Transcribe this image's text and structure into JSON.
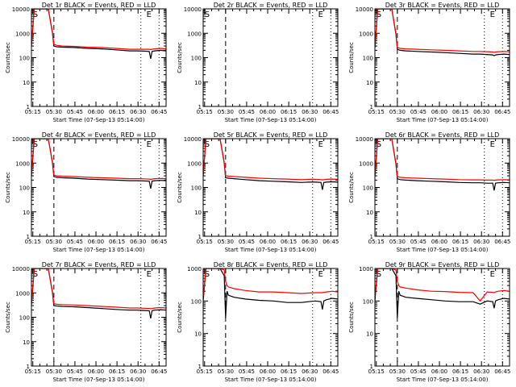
{
  "figure": {
    "shared_xlabel": "Start Time (07-Sep-13 05:14:00)",
    "shared_ylabel": "Counts/sec",
    "xticks": [
      "05:15",
      "05:30",
      "05:45",
      "06:00",
      "06:15",
      "06:30",
      "06:45"
    ],
    "yticks": [
      "1",
      "10",
      "100",
      "1000",
      "10000"
    ],
    "markers": [
      "S",
      "E"
    ],
    "colors": {
      "events": "#000000",
      "lld": "#ff0000",
      "axes": "#000000"
    }
  },
  "chart_data": [
    {
      "type": "line",
      "title": "Det 1r BLACK = Events, RED = LLD",
      "xlabel": "Start Time (07-Sep-13 05:14:00)",
      "ylabel": "Counts/sec",
      "xlim": [
        0,
        96
      ],
      "ylim": [
        1,
        10000
      ],
      "yscale": "log",
      "x": [
        0,
        2,
        4,
        8,
        12,
        15,
        16,
        18,
        22,
        30,
        40,
        50,
        60,
        70,
        75,
        80,
        84,
        85,
        86,
        88,
        92,
        96
      ],
      "series": [
        {
          "name": "Events",
          "values": [
            300,
            10000,
            10000,
            10000,
            10000,
            1000,
            300,
            280,
            270,
            260,
            240,
            230,
            210,
            190,
            190,
            185,
            180,
            90,
            180,
            190,
            200,
            190
          ]
        },
        {
          "name": "LLD",
          "values": [
            320,
            10000,
            10000,
            10000,
            10000,
            1100,
            350,
            320,
            300,
            290,
            270,
            260,
            240,
            220,
            220,
            220,
            220,
            215,
            220,
            230,
            240,
            230
          ]
        }
      ],
      "vlines": [
        {
          "x": 16,
          "style": "dashed"
        },
        {
          "x": 78,
          "style": "dotted"
        },
        {
          "x": 91,
          "style": "dotted"
        }
      ],
      "markers": [
        {
          "label": "S",
          "x": 1
        },
        {
          "label": "E",
          "x": 82
        }
      ]
    },
    {
      "type": "line",
      "title": "Det 2r BLACK = Events, RED = LLD",
      "xlabel": "Start Time (07-Sep-13 05:14:00)",
      "ylabel": "Counts/sec",
      "xlim": [
        0,
        96
      ],
      "ylim": [
        1,
        10000
      ],
      "yscale": "log",
      "x": [
        0,
        1,
        2
      ],
      "series": [
        {
          "name": "Events",
          "values": [
            1,
            1,
            1
          ]
        },
        {
          "name": "LLD",
          "values": [
            1,
            1,
            1
          ]
        }
      ],
      "vlines": [
        {
          "x": 16,
          "style": "dashed"
        },
        {
          "x": 78,
          "style": "dotted"
        },
        {
          "x": 91,
          "style": "dotted"
        }
      ],
      "markers": [
        {
          "label": "S",
          "x": 1
        },
        {
          "label": "E",
          "x": 82
        }
      ]
    },
    {
      "type": "line",
      "title": "Det 3r BLACK = Events, RED = LLD",
      "xlabel": "Start Time (07-Sep-13 05:14:00)",
      "ylabel": "Counts/sec",
      "xlim": [
        0,
        96
      ],
      "ylim": [
        1,
        10000
      ],
      "yscale": "log",
      "x": [
        0,
        2,
        4,
        8,
        12,
        15,
        16,
        18,
        22,
        30,
        40,
        50,
        60,
        70,
        75,
        80,
        84,
        85,
        86,
        88,
        92,
        96
      ],
      "series": [
        {
          "name": "Events",
          "values": [
            250,
            10000,
            10000,
            10000,
            10000,
            900,
            220,
            200,
            190,
            180,
            170,
            160,
            150,
            140,
            140,
            135,
            130,
            120,
            130,
            135,
            140,
            135
          ]
        },
        {
          "name": "LLD",
          "values": [
            270,
            10000,
            10000,
            10000,
            10000,
            1000,
            260,
            240,
            230,
            220,
            210,
            200,
            190,
            180,
            180,
            175,
            170,
            165,
            170,
            175,
            180,
            175
          ]
        }
      ],
      "vlines": [
        {
          "x": 16,
          "style": "dashed"
        },
        {
          "x": 78,
          "style": "dotted"
        },
        {
          "x": 91,
          "style": "dotted"
        }
      ],
      "markers": [
        {
          "label": "S",
          "x": 1
        },
        {
          "label": "E",
          "x": 82
        }
      ]
    },
    {
      "type": "line",
      "title": "Det 4r BLACK = Events, RED = LLD",
      "xlabel": "Start Time (07-Sep-13 05:14:00)",
      "ylabel": "Counts/sec",
      "xlim": [
        0,
        96
      ],
      "ylim": [
        1,
        10000
      ],
      "yscale": "log",
      "x": [
        0,
        2,
        4,
        8,
        12,
        15,
        16,
        18,
        22,
        30,
        40,
        50,
        60,
        70,
        75,
        80,
        84,
        85,
        86,
        88,
        92,
        96
      ],
      "series": [
        {
          "name": "Events",
          "values": [
            300,
            10000,
            10000,
            10000,
            10000,
            1000,
            280,
            260,
            250,
            240,
            220,
            210,
            200,
            190,
            190,
            185,
            180,
            90,
            180,
            190,
            195,
            190
          ]
        },
        {
          "name": "LLD",
          "values": [
            320,
            10000,
            10000,
            10000,
            10000,
            1100,
            320,
            300,
            290,
            280,
            260,
            250,
            240,
            230,
            230,
            225,
            220,
            215,
            220,
            230,
            235,
            230
          ]
        }
      ],
      "vlines": [
        {
          "x": 16,
          "style": "dashed"
        },
        {
          "x": 78,
          "style": "dotted"
        },
        {
          "x": 91,
          "style": "dotted"
        }
      ],
      "markers": [
        {
          "label": "S",
          "x": 1
        },
        {
          "label": "E",
          "x": 82
        }
      ]
    },
    {
      "type": "line",
      "title": "Det 5r BLACK = Events, RED = LLD",
      "xlabel": "Start Time (07-Sep-13 05:14:00)",
      "ylabel": "Counts/sec",
      "xlim": [
        0,
        96
      ],
      "ylim": [
        1,
        10000
      ],
      "yscale": "log",
      "x": [
        0,
        2,
        4,
        8,
        12,
        15,
        16,
        18,
        22,
        30,
        40,
        50,
        60,
        70,
        75,
        80,
        84,
        85,
        86,
        88,
        92,
        96
      ],
      "series": [
        {
          "name": "Events",
          "values": [
            300,
            10000,
            10000,
            10000,
            10000,
            1000,
            250,
            240,
            230,
            210,
            190,
            180,
            170,
            160,
            165,
            165,
            160,
            80,
            160,
            165,
            170,
            165
          ]
        },
        {
          "name": "LLD",
          "values": [
            320,
            10000,
            10000,
            10000,
            10000,
            1100,
            300,
            290,
            280,
            260,
            240,
            230,
            220,
            210,
            215,
            215,
            210,
            205,
            210,
            215,
            220,
            215
          ]
        }
      ],
      "vlines": [
        {
          "x": 16,
          "style": "dashed"
        },
        {
          "x": 78,
          "style": "dotted"
        },
        {
          "x": 91,
          "style": "dotted"
        }
      ],
      "markers": [
        {
          "label": "S",
          "x": 1
        },
        {
          "label": "E",
          "x": 82
        }
      ]
    },
    {
      "type": "line",
      "title": "Det 6r BLACK = Events, RED = LLD",
      "xlabel": "Start Time (07-Sep-13 05:14:00)",
      "ylabel": "Counts/sec",
      "xlim": [
        0,
        96
      ],
      "ylim": [
        1,
        10000
      ],
      "yscale": "log",
      "x": [
        0,
        2,
        4,
        8,
        12,
        15,
        16,
        18,
        22,
        30,
        40,
        50,
        60,
        70,
        75,
        80,
        84,
        85,
        86,
        88,
        92,
        96
      ],
      "series": [
        {
          "name": "Events",
          "values": [
            280,
            10000,
            10000,
            10000,
            10000,
            900,
            230,
            210,
            200,
            190,
            180,
            170,
            160,
            155,
            155,
            150,
            150,
            75,
            150,
            155,
            160,
            155
          ]
        },
        {
          "name": "LLD",
          "values": [
            300,
            10000,
            10000,
            10000,
            10000,
            1000,
            280,
            260,
            250,
            240,
            230,
            220,
            210,
            205,
            205,
            200,
            200,
            195,
            200,
            205,
            210,
            205
          ]
        }
      ],
      "vlines": [
        {
          "x": 16,
          "style": "dashed"
        },
        {
          "x": 78,
          "style": "dotted"
        },
        {
          "x": 91,
          "style": "dotted"
        }
      ],
      "markers": [
        {
          "label": "S",
          "x": 1
        },
        {
          "label": "E",
          "x": 82
        }
      ]
    },
    {
      "type": "line",
      "title": "Det 7r BLACK = Events, RED = LLD",
      "xlabel": "Start Time (07-Sep-13 05:14:00)",
      "ylabel": "Counts/sec",
      "xlim": [
        0,
        96
      ],
      "ylim": [
        1,
        10000
      ],
      "yscale": "log",
      "x": [
        0,
        2,
        4,
        8,
        12,
        15,
        16,
        18,
        22,
        30,
        40,
        50,
        60,
        70,
        75,
        80,
        84,
        85,
        86,
        88,
        92,
        96
      ],
      "series": [
        {
          "name": "Events",
          "values": [
            320,
            10000,
            10000,
            10000,
            10000,
            1000,
            300,
            290,
            280,
            270,
            250,
            230,
            210,
            195,
            195,
            190,
            185,
            90,
            185,
            195,
            205,
            195
          ]
        },
        {
          "name": "LLD",
          "values": [
            340,
            10000,
            10000,
            10000,
            10000,
            1100,
            360,
            340,
            330,
            320,
            300,
            280,
            260,
            240,
            240,
            235,
            230,
            225,
            230,
            240,
            250,
            240
          ]
        }
      ],
      "vlines": [
        {
          "x": 16,
          "style": "dashed"
        },
        {
          "x": 78,
          "style": "dotted"
        },
        {
          "x": 91,
          "style": "dotted"
        }
      ],
      "markers": [
        {
          "label": "S",
          "x": 1
        },
        {
          "label": "E",
          "x": 82
        }
      ]
    },
    {
      "type": "line",
      "title": "Det 8r BLACK = Events, RED = LLD",
      "xlabel": "Start Time (07-Sep-13 05:14:00)",
      "ylabel": "Counts/sec",
      "xlim": [
        0,
        96
      ],
      "ylim": [
        1,
        1000
      ],
      "yscale": "log",
      "x": [
        0,
        2,
        4,
        8,
        12,
        15,
        16,
        17,
        18,
        22,
        30,
        40,
        50,
        60,
        70,
        75,
        80,
        84,
        85,
        86,
        88,
        92,
        96
      ],
      "series": [
        {
          "name": "Events",
          "values": [
            100,
            1000,
            1000,
            1000,
            1000,
            600,
            30,
            200,
            150,
            130,
            115,
            105,
            100,
            90,
            90,
            95,
            100,
            95,
            55,
            100,
            110,
            120,
            115
          ]
        },
        {
          "name": "LLD",
          "values": [
            120,
            1000,
            1000,
            1000,
            1000,
            900,
            400,
            300,
            270,
            240,
            210,
            190,
            190,
            180,
            170,
            175,
            180,
            180,
            180,
            185,
            190,
            200,
            190
          ]
        }
      ],
      "vlines": [
        {
          "x": 16,
          "style": "dashed"
        },
        {
          "x": 78,
          "style": "dotted"
        },
        {
          "x": 91,
          "style": "dotted"
        }
      ],
      "markers": [
        {
          "label": "S",
          "x": 1
        },
        {
          "label": "E",
          "x": 82
        }
      ]
    },
    {
      "type": "line",
      "title": "Det 9r BLACK = Events, RED = LLD",
      "xlabel": "Start Time (07-Sep-13 05:14:00)",
      "ylabel": "Counts/sec",
      "xlim": [
        0,
        96
      ],
      "ylim": [
        1,
        1000
      ],
      "yscale": "log",
      "x": [
        0,
        2,
        4,
        8,
        12,
        15,
        16,
        17,
        18,
        22,
        30,
        40,
        50,
        60,
        70,
        75,
        80,
        84,
        85,
        86,
        88,
        92,
        96
      ],
      "series": [
        {
          "name": "Events",
          "values": [
            100,
            1000,
            1000,
            1000,
            1000,
            600,
            30,
            200,
            150,
            130,
            120,
            110,
            100,
            95,
            95,
            80,
            100,
            95,
            60,
            100,
            110,
            120,
            115
          ]
        },
        {
          "name": "LLD",
          "values": [
            120,
            1000,
            1000,
            1000,
            1000,
            900,
            400,
            300,
            270,
            250,
            220,
            200,
            195,
            185,
            180,
            100,
            190,
            185,
            180,
            190,
            200,
            210,
            200
          ]
        }
      ],
      "vlines": [
        {
          "x": 16,
          "style": "dashed"
        },
        {
          "x": 78,
          "style": "dotted"
        },
        {
          "x": 91,
          "style": "dotted"
        }
      ],
      "markers": [
        {
          "label": "S",
          "x": 1
        },
        {
          "label": "E",
          "x": 82
        }
      ]
    }
  ]
}
